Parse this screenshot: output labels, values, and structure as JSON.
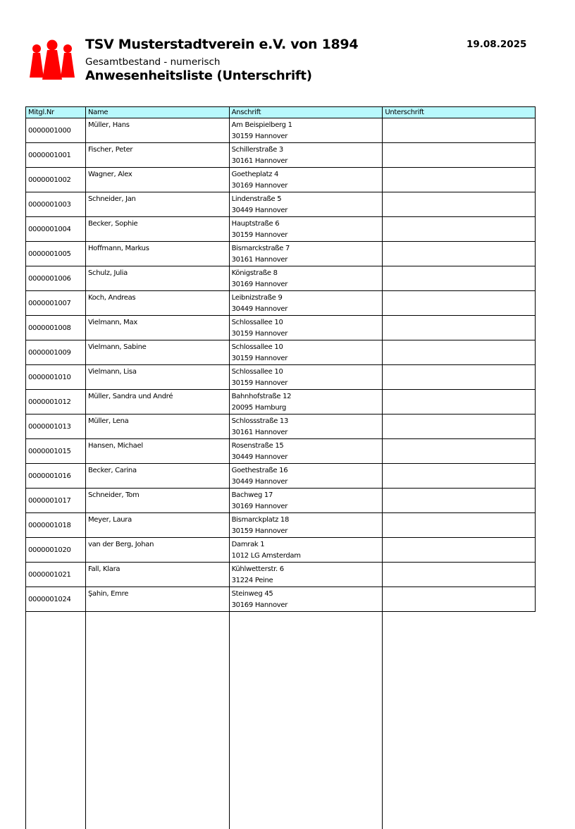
{
  "header": {
    "title": "TSV Musterstadtverein e.V. von 1894",
    "subtitle": "Gesamtbestand - numerisch",
    "list_title": "Anwesenheitsliste (Unterschrift)",
    "date": "19.08.2025",
    "logo_icon": "people-figures-logo",
    "logo_color": "#ff0000"
  },
  "table": {
    "columns": [
      "Mitgl.Nr",
      "Name",
      "Anschrift",
      "Unterschrift"
    ],
    "header_color": "#b8f8fc",
    "rows": [
      {
        "nr": "0000001000",
        "name": "Müller, Hans",
        "street": "Am Beispielberg 1",
        "city": "30159 Hannover",
        "signature": ""
      },
      {
        "nr": "0000001001",
        "name": "Fischer, Peter",
        "street": "Schillerstraße 3",
        "city": "30161 Hannover",
        "signature": ""
      },
      {
        "nr": "0000001002",
        "name": "Wagner, Alex",
        "street": "Goetheplatz 4",
        "city": "30169 Hannover",
        "signature": ""
      },
      {
        "nr": "0000001003",
        "name": "Schneider, Jan",
        "street": "Lindenstraße 5",
        "city": "30449 Hannover",
        "signature": ""
      },
      {
        "nr": "0000001004",
        "name": "Becker, Sophie",
        "street": "Hauptstraße 6",
        "city": "30159 Hannover",
        "signature": ""
      },
      {
        "nr": "0000001005",
        "name": "Hoffmann, Markus",
        "street": "Bismarckstraße 7",
        "city": "30161 Hannover",
        "signature": ""
      },
      {
        "nr": "0000001006",
        "name": "Schulz, Julia",
        "street": "Königstraße 8",
        "city": "30169 Hannover",
        "signature": ""
      },
      {
        "nr": "0000001007",
        "name": "Koch, Andreas",
        "street": "Leibnizstraße 9",
        "city": "30449 Hannover",
        "signature": ""
      },
      {
        "nr": "0000001008",
        "name": "Vielmann, Max",
        "street": "Schlossallee 10",
        "city": "30159 Hannover",
        "signature": ""
      },
      {
        "nr": "0000001009",
        "name": "Vielmann, Sabine",
        "street": "Schlossallee 10",
        "city": "30159 Hannover",
        "signature": ""
      },
      {
        "nr": "0000001010",
        "name": "Vielmann, Lisa",
        "street": "Schlossallee 10",
        "city": "30159 Hannover",
        "signature": ""
      },
      {
        "nr": "0000001012",
        "name": "Müller, Sandra und André",
        "street": "Bahnhofstraße 12",
        "city": "20095 Hamburg",
        "signature": ""
      },
      {
        "nr": "0000001013",
        "name": "Müller, Lena",
        "street": "Schlossstraße 13",
        "city": "30161 Hannover",
        "signature": ""
      },
      {
        "nr": "0000001015",
        "name": "Hansen, Michael",
        "street": "Rosenstraße 15",
        "city": "30449 Hannover",
        "signature": ""
      },
      {
        "nr": "0000001016",
        "name": "Becker, Carina",
        "street": "Goethestraße 16",
        "city": "30449 Hannover",
        "signature": ""
      },
      {
        "nr": "0000001017",
        "name": "Schneider, Tom",
        "street": "Bachweg 17",
        "city": "30169 Hannover",
        "signature": ""
      },
      {
        "nr": "0000001018",
        "name": "Meyer, Laura",
        "street": "Bismarckplatz 18",
        "city": "30159 Hannover",
        "signature": ""
      },
      {
        "nr": "0000001020",
        "name": "van der Berg, Johan",
        "street": "Damrak 1",
        "city": "1012 LG Amsterdam",
        "signature": ""
      },
      {
        "nr": "0000001021",
        "name": "Fall, Klara",
        "street": "Kühlwetterstr. 6",
        "city": "31224 Peine",
        "signature": ""
      },
      {
        "nr": "0000001024",
        "name": "Şahin, Emre",
        "street": "Steinweg 45",
        "city": "30169 Hannover",
        "signature": ""
      }
    ]
  }
}
